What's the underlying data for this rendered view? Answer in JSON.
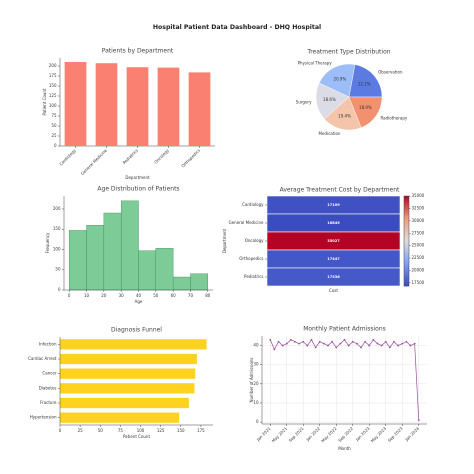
{
  "title": "Hospital Patient Data Dashboard - DHQ Hospital",
  "chart_data": [
    {
      "type": "bar",
      "title": "Patients by Department",
      "xlabel": "Department",
      "ylabel": "Patient Count",
      "categories": [
        "Cardiology",
        "General Medicine",
        "Pediatrics",
        "Oncology",
        "Orthopedics"
      ],
      "values": [
        210,
        207,
        197,
        196,
        184
      ],
      "color": "#fa8072",
      "ylim": [
        0,
        220
      ],
      "yticks": [
        0,
        25,
        50,
        75,
        100,
        125,
        150,
        175,
        200
      ]
    },
    {
      "type": "pie",
      "title": "Treatment Type Distribution",
      "categories": [
        "Observation",
        "Physical Therapy",
        "Surgery",
        "Medication",
        "Radiotherapy"
      ],
      "values": [
        22.1,
        20.9,
        18.6,
        19.4,
        18.9
      ],
      "value_labels": [
        "22.1%",
        "20.9%",
        "18.6%",
        "19.4%",
        "18.9%"
      ],
      "colors": [
        "#5b7be2",
        "#9dbdf9",
        "#dcdce6",
        "#f4c4ab",
        "#f2906f"
      ]
    },
    {
      "type": "histogram",
      "title": "Age Distribution of Patients",
      "xlabel": "Age",
      "ylabel": "Frequency",
      "bins": [
        0,
        10,
        20,
        30,
        40,
        50,
        60,
        70,
        80
      ],
      "values": [
        147,
        160,
        190,
        220,
        97,
        103,
        32,
        40
      ],
      "color": "#7dcc98",
      "xlim": [
        -3,
        83
      ],
      "xticks": [
        0,
        10,
        20,
        30,
        40,
        50,
        60,
        70,
        80
      ],
      "ylim": [
        0,
        232
      ],
      "yticks": [
        0,
        50,
        100,
        150,
        200
      ]
    },
    {
      "type": "heatmap",
      "title": "Average Treatment Cost by Department",
      "xlabel": "Cost",
      "ylabel": "Department",
      "categories": [
        "Cardiology",
        "General Medicine",
        "Oncology",
        "Orthopedics",
        "Pediatrics"
      ],
      "values": [
        17109,
        16849,
        35027,
        17447,
        17536
      ],
      "colormap": "coolwarm",
      "clim": [
        16849,
        35027
      ],
      "cticks": [
        17500,
        20000,
        22500,
        25000,
        27500,
        30000,
        32500,
        35000
      ]
    },
    {
      "type": "hbar",
      "title": "Diagnosis Funnel",
      "xlabel": "Patient Count",
      "categories": [
        "Infection",
        "Cardiac Arrest",
        "Cancer",
        "Diabetes",
        "Fracture",
        "Hypertension"
      ],
      "values": [
        182,
        170,
        168,
        167,
        160,
        148
      ],
      "color": "#ffd21f",
      "xlim": [
        0,
        190
      ],
      "xticks": [
        0,
        25,
        50,
        75,
        100,
        125,
        150,
        175
      ]
    },
    {
      "type": "line",
      "title": "Monthly Patient Admissions",
      "xlabel": "Month",
      "ylabel": "Number of Admissions",
      "x": [
        "2021-01",
        "2021-02",
        "2021-03",
        "2021-04",
        "2021-05",
        "2021-06",
        "2021-07",
        "2021-08",
        "2021-09",
        "2021-10",
        "2021-11",
        "2021-12",
        "2022-01",
        "2022-02",
        "2022-03",
        "2022-04",
        "2022-05",
        "2022-06",
        "2022-07",
        "2022-08",
        "2022-09",
        "2022-10",
        "2022-11",
        "2022-12",
        "2023-01",
        "2023-02",
        "2023-03",
        "2023-04",
        "2023-05",
        "2023-06",
        "2023-07",
        "2023-08",
        "2023-09",
        "2023-10",
        "2023-11",
        "2023-12",
        "2024-01"
      ],
      "values": [
        43,
        38,
        42,
        40,
        41,
        43,
        42,
        41,
        42,
        40,
        43,
        39,
        42,
        41,
        40,
        42,
        39,
        41,
        43,
        40,
        42,
        41,
        39,
        42,
        40,
        43,
        41,
        40,
        42,
        39,
        42,
        40,
        41,
        42,
        40,
        41,
        1
      ],
      "color": "#9b4f9b",
      "grid": true,
      "xlim": [
        "2020-11",
        "2024-03"
      ],
      "xticks": [
        {
          "value": "2021-01",
          "label": "Jan 2021"
        },
        {
          "value": "2021-05",
          "label": "May 2021"
        },
        {
          "value": "2021-09",
          "label": "Sep 2021"
        },
        {
          "value": "2022-01",
          "label": "Jan 2022"
        },
        {
          "value": "2022-05",
          "label": "May 2022"
        },
        {
          "value": "2022-09",
          "label": "Sep 2022"
        },
        {
          "value": "2023-01",
          "label": "Jan 2023"
        },
        {
          "value": "2023-05",
          "label": "May 2023"
        },
        {
          "value": "2023-09",
          "label": "Sep 2023"
        },
        {
          "value": "2024-01",
          "label": "Jan 2024"
        }
      ],
      "ylim": [
        -1,
        45
      ],
      "yticks": [
        0,
        10,
        20,
        30,
        40
      ]
    }
  ]
}
